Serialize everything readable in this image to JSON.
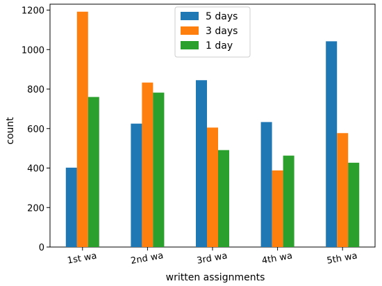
{
  "chart_data": {
    "type": "bar",
    "title": "",
    "xlabel": "written assignments",
    "ylabel": "count",
    "ylim": [
      0,
      1230
    ],
    "yticks": [
      0,
      200,
      400,
      600,
      800,
      1000,
      1200
    ],
    "categories": [
      "1st wa",
      "2nd wa",
      "3rd wa",
      "4th wa",
      "5th wa"
    ],
    "series": [
      {
        "name": "5 days",
        "color": "#1f77b4",
        "values": [
          402,
          625,
          845,
          633,
          1042
        ]
      },
      {
        "name": "3 days",
        "color": "#ff7f0e",
        "values": [
          1192,
          833,
          605,
          388,
          577
        ]
      },
      {
        "name": "1 day",
        "color": "#2ca02c",
        "values": [
          760,
          782,
          491,
          463,
          427
        ]
      }
    ],
    "legend_position": "top-center",
    "grid": false
  }
}
